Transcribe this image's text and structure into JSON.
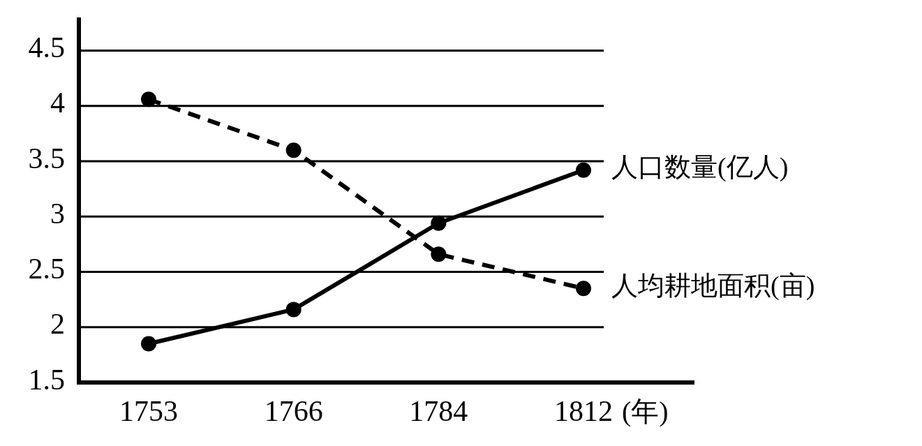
{
  "chart_data": {
    "type": "line",
    "xlabel": "(年)",
    "categories": [
      "1753",
      "1766",
      "1784",
      "1812"
    ],
    "series": [
      {
        "name": "人口数量(亿人)",
        "color": "#000000",
        "line_style": "solid",
        "values": [
          1.85,
          2.16,
          2.94,
          3.42
        ]
      },
      {
        "name": "人均耕地面积(亩)",
        "color": "#000000",
        "line_style": "dashed",
        "values": [
          4.06,
          3.6,
          2.66,
          2.35
        ]
      }
    ],
    "ylim": [
      1.5,
      4.8
    ],
    "yticks": [
      1.5,
      2,
      2.5,
      3,
      3.5,
      4,
      4.5
    ],
    "grid": "y",
    "marker": "circle"
  }
}
